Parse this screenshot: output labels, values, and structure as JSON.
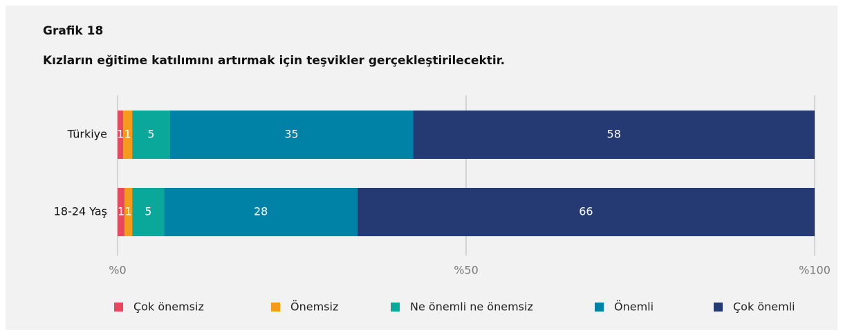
{
  "chart_data": {
    "type": "stacked-bar-horizontal",
    "title": "Grafik 18",
    "subtitle": "Kızların eğitime katılımını artırmak için teşvikler gerçekleştirilecektir.",
    "categories": [
      "Türkiye",
      "18-24 Yaş"
    ],
    "series": [
      {
        "name": "Çok önemsiz",
        "color": "#e8485d",
        "values": [
          0.8,
          1.0
        ],
        "value_labels": [
          "1",
          "1"
        ]
      },
      {
        "name": "Önemsiz",
        "color": "#f59a1b",
        "values": [
          1.3,
          1.1
        ],
        "value_labels": [
          "1",
          "1"
        ]
      },
      {
        "name": "Ne önemli ne önemsiz",
        "color": "#0aa89a",
        "values": [
          5.4,
          4.6
        ],
        "value_labels": [
          "5",
          "5"
        ]
      },
      {
        "name": "Önemli",
        "color": "#0082a6",
        "values": [
          34.9,
          27.7
        ],
        "value_labels": [
          "35",
          "28"
        ]
      },
      {
        "name": "Çok önemli",
        "color": "#253a73",
        "values": [
          57.6,
          65.6
        ],
        "value_labels": [
          "58",
          "66"
        ]
      }
    ],
    "xlim": [
      0,
      100
    ],
    "xticks": [
      {
        "value": 0,
        "label": "%0"
      },
      {
        "value": 50,
        "label": "%50"
      },
      {
        "value": 100,
        "label": "%100"
      }
    ],
    "grid": true
  }
}
